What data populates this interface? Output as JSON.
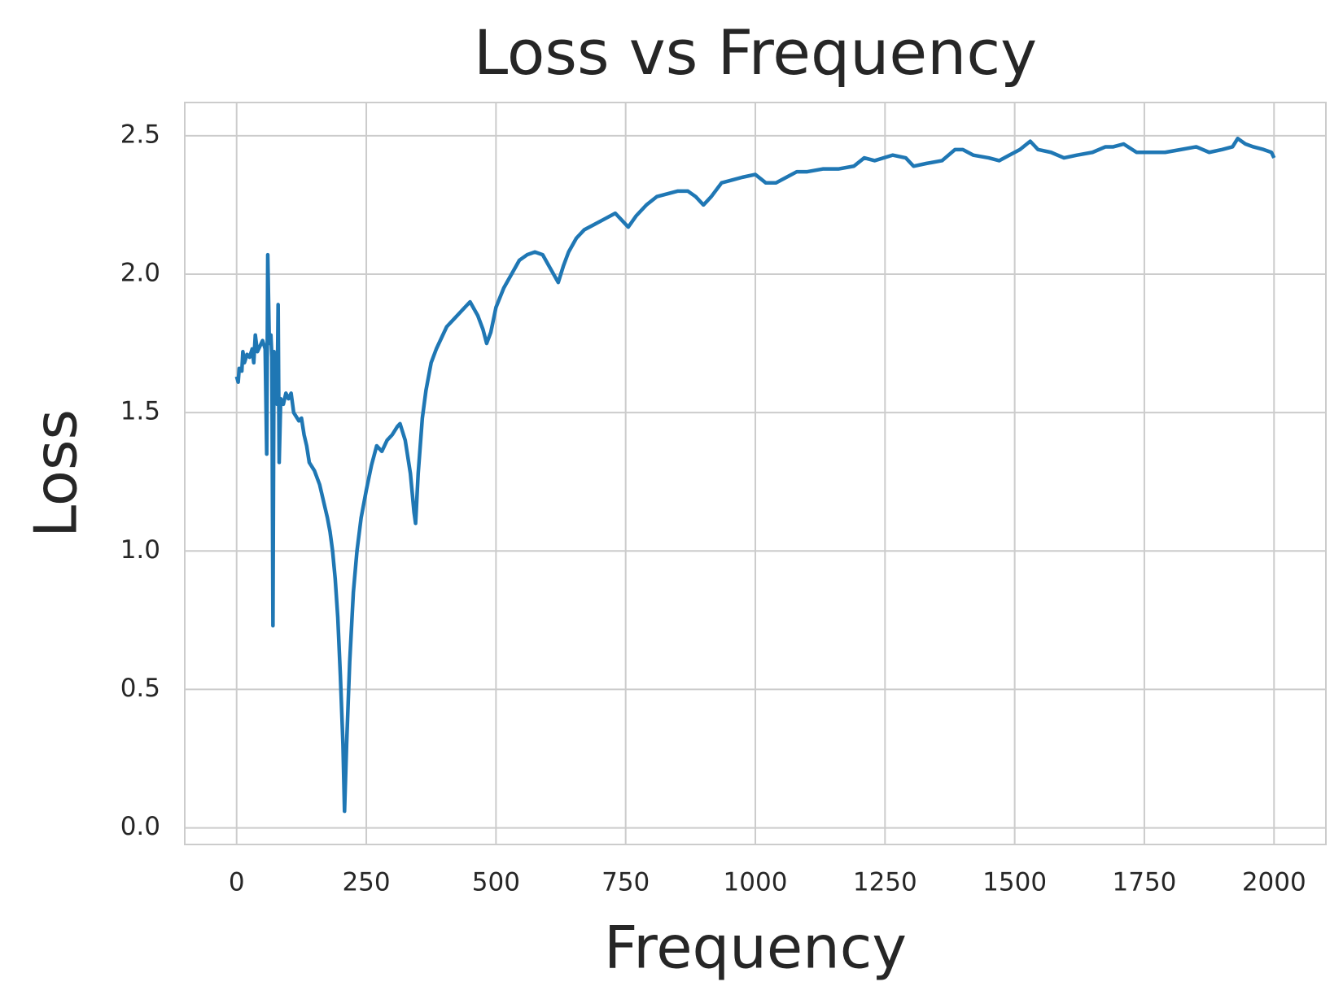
{
  "chart_data": {
    "type": "line",
    "title": "Loss vs Frequency",
    "x_label": "Frequency",
    "y_label": "Loss",
    "xlim": [
      -100,
      2100
    ],
    "ylim": [
      -0.06,
      2.62
    ],
    "xticks": [
      0,
      250,
      500,
      750,
      1000,
      1250,
      1500,
      1750,
      2000
    ],
    "yticks": [
      {
        "value": 0,
        "label": "0.0"
      },
      0.5,
      {
        "value": 1,
        "label": "1.0"
      },
      1.5,
      {
        "value": 2,
        "label": "2.0"
      },
      2.5
    ],
    "grid": true,
    "series": [
      {
        "color": "#1f77b4",
        "x": [
          0,
          3,
          5,
          10,
          12,
          15,
          20,
          25,
          30,
          33,
          36,
          40,
          45,
          50,
          55,
          58,
          60,
          63,
          66,
          68,
          70,
          72,
          78,
          80,
          82,
          85,
          90,
          95,
          100,
          105,
          110,
          120,
          125,
          130,
          135,
          140,
          150,
          160,
          170,
          175,
          180,
          185,
          190,
          195,
          200,
          205,
          208,
          212,
          218,
          225,
          232,
          240,
          250,
          260,
          270,
          280,
          290,
          300,
          310,
          315,
          325,
          335,
          342,
          345,
          350,
          358,
          365,
          375,
          385,
          395,
          405,
          420,
          435,
          450,
          465,
          475,
          482,
          490,
          500,
          515,
          530,
          545,
          560,
          575,
          590,
          605,
          620,
          630,
          640,
          655,
          670,
          690,
          710,
          730,
          745,
          755,
          770,
          790,
          810,
          830,
          850,
          870,
          885,
          900,
          915,
          935,
          955,
          975,
          1000,
          1020,
          1040,
          1060,
          1080,
          1100,
          1130,
          1160,
          1190,
          1210,
          1230,
          1265,
          1290,
          1305,
          1330,
          1360,
          1385,
          1400,
          1420,
          1450,
          1470,
          1490,
          1510,
          1530,
          1545,
          1570,
          1595,
          1620,
          1650,
          1675,
          1690,
          1710,
          1735,
          1760,
          1790,
          1820,
          1850,
          1875,
          1900,
          1920,
          1930,
          1945,
          1960,
          1980,
          1995,
          2000
        ],
        "values": [
          1.63,
          1.61,
          1.66,
          1.65,
          1.72,
          1.68,
          1.71,
          1.7,
          1.73,
          1.68,
          1.78,
          1.72,
          1.74,
          1.76,
          1.73,
          1.35,
          2.07,
          1.75,
          1.78,
          1.7,
          0.73,
          1.72,
          1.53,
          1.89,
          1.32,
          1.55,
          1.53,
          1.57,
          1.55,
          1.57,
          1.5,
          1.47,
          1.48,
          1.42,
          1.38,
          1.32,
          1.29,
          1.24,
          1.16,
          1.12,
          1.07,
          1.0,
          0.9,
          0.76,
          0.55,
          0.3,
          0.06,
          0.3,
          0.6,
          0.85,
          1.0,
          1.12,
          1.22,
          1.31,
          1.38,
          1.36,
          1.4,
          1.42,
          1.45,
          1.46,
          1.4,
          1.28,
          1.14,
          1.1,
          1.28,
          1.48,
          1.58,
          1.68,
          1.73,
          1.77,
          1.81,
          1.84,
          1.87,
          1.9,
          1.85,
          1.8,
          1.75,
          1.79,
          1.88,
          1.95,
          2.0,
          2.05,
          2.07,
          2.08,
          2.07,
          2.02,
          1.97,
          2.03,
          2.08,
          2.13,
          2.16,
          2.18,
          2.2,
          2.22,
          2.19,
          2.17,
          2.21,
          2.25,
          2.28,
          2.29,
          2.3,
          2.3,
          2.28,
          2.25,
          2.28,
          2.33,
          2.34,
          2.35,
          2.36,
          2.33,
          2.33,
          2.35,
          2.37,
          2.37,
          2.38,
          2.38,
          2.39,
          2.42,
          2.41,
          2.43,
          2.42,
          2.39,
          2.4,
          2.41,
          2.45,
          2.45,
          2.43,
          2.42,
          2.41,
          2.43,
          2.45,
          2.48,
          2.45,
          2.44,
          2.42,
          2.43,
          2.44,
          2.46,
          2.46,
          2.47,
          2.44,
          2.44,
          2.44,
          2.45,
          2.46,
          2.44,
          2.45,
          2.46,
          2.49,
          2.47,
          2.46,
          2.45,
          2.44,
          2.42
        ]
      }
    ]
  }
}
